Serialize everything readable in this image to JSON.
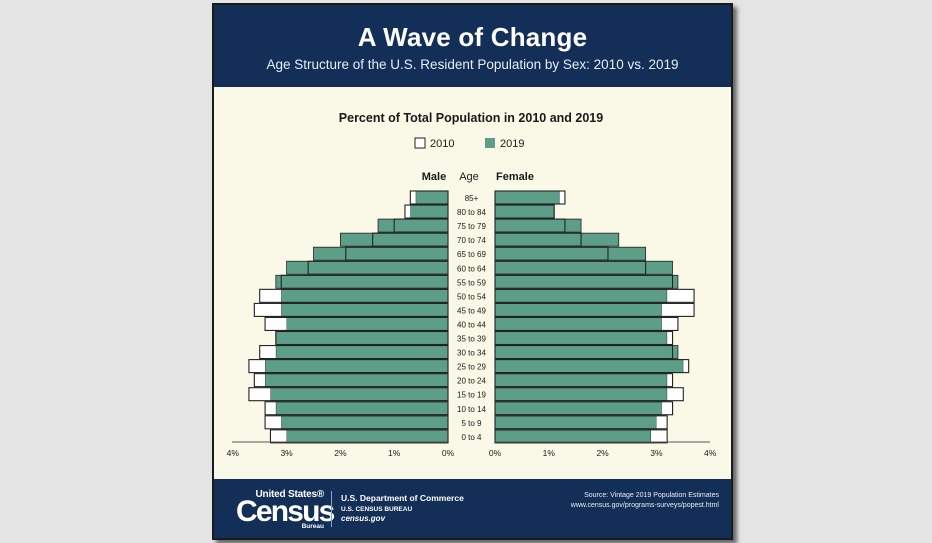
{
  "header": {
    "title": "A Wave of Change",
    "subtitle": "Age Structure of the U.S. Resident Population by Sex: 2010 vs. 2019"
  },
  "footer": {
    "logo_top": "United States®",
    "logo_main": "Census",
    "logo_bottom": "Bureau",
    "dept_line1": "U.S. Department of Commerce",
    "dept_line2": "U.S. CENSUS BUREAU",
    "dept_line3": "census.gov",
    "source_line1": "Source: Vintage 2019 Population Estimates",
    "source_line2": "www.census.gov/programs-surveys/popest.html"
  },
  "colors": {
    "header_bg": "#132e57",
    "bar_2019": "#5d9e88",
    "bar_2010_fill": "#ffffff",
    "bar_outline": "#222222",
    "panel_bg": "#faf8e6"
  },
  "chart_data": {
    "type": "bar",
    "orientation": "horizontal-pyramid",
    "title": "Percent of Total Population in 2010 and 2019",
    "legend": [
      "2010",
      "2019"
    ],
    "legend_position": "top-center",
    "male_label": "Male",
    "age_label": "Age",
    "female_label": "Female",
    "axis_ticks": [
      "4%",
      "3%",
      "2%",
      "1%",
      "0%"
    ],
    "axis_ticks_right": [
      "0%",
      "1%",
      "2%",
      "3%",
      "4%"
    ],
    "xlim": [
      0,
      4
    ],
    "categories": [
      "85+",
      "80 to 84",
      "75 to 79",
      "70 to 74",
      "65 to 69",
      "60 to 64",
      "55 to 59",
      "50 to 54",
      "45 to 49",
      "40 to 44",
      "35 to 39",
      "30 to 34",
      "25 to 29",
      "20 to 24",
      "15 to 19",
      "10 to 14",
      "5 to 9",
      "0 to 4"
    ],
    "series": [
      {
        "name": "Male 2010",
        "values": [
          0.7,
          0.8,
          1.0,
          1.4,
          1.9,
          2.6,
          3.1,
          3.5,
          3.6,
          3.4,
          3.2,
          3.5,
          3.7,
          3.6,
          3.7,
          3.4,
          3.4,
          3.3
        ]
      },
      {
        "name": "Male 2019",
        "values": [
          0.6,
          0.7,
          1.3,
          2.0,
          2.5,
          3.0,
          3.2,
          3.1,
          3.1,
          3.0,
          3.2,
          3.2,
          3.4,
          3.4,
          3.3,
          3.2,
          3.1,
          3.0
        ]
      },
      {
        "name": "Female 2010",
        "values": [
          1.3,
          1.1,
          1.3,
          1.6,
          2.1,
          2.8,
          3.3,
          3.7,
          3.7,
          3.4,
          3.3,
          3.3,
          3.6,
          3.3,
          3.5,
          3.3,
          3.2,
          3.2
        ]
      },
      {
        "name": "Female 2019",
        "values": [
          1.2,
          1.1,
          1.6,
          2.3,
          2.8,
          3.3,
          3.4,
          3.2,
          3.1,
          3.1,
          3.2,
          3.4,
          3.5,
          3.2,
          3.2,
          3.1,
          3.0,
          2.9
        ]
      }
    ]
  }
}
